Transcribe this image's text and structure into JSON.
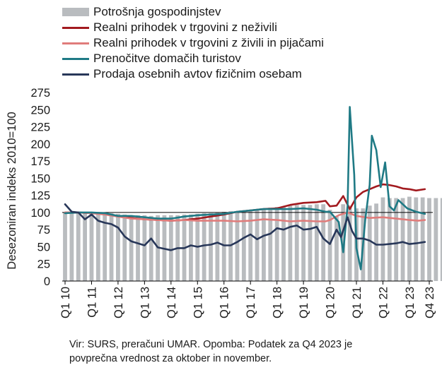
{
  "chart_data": {
    "type": "bar+line",
    "ylabel": "Desezoniran indeks 2010=100",
    "ylim": [
      0,
      275
    ],
    "yticks": [
      0,
      25,
      50,
      75,
      100,
      125,
      150,
      175,
      200,
      225,
      250,
      275
    ],
    "x_tick_labels": [
      "Q1 10",
      "Q1 11",
      "Q1 12",
      "Q1 13",
      "Q1 14",
      "Q1 15",
      "Q1 16",
      "Q1 17",
      "Q1 18",
      "Q1 19",
      "Q1 20",
      "Q1 21",
      "Q1 22",
      "Q1 23",
      "Q4 23"
    ],
    "x_tick_index": [
      0,
      12,
      24,
      36,
      48,
      60,
      72,
      84,
      96,
      108,
      120,
      132,
      144,
      156,
      165
    ],
    "reference_line": 100,
    "bars": {
      "name": "Potrošnja gospodinjstev",
      "color": "#b9bcbf",
      "quarterly_values": [
        100,
        100,
        100,
        101,
        101,
        100,
        99,
        99,
        98,
        97,
        96,
        96,
        96,
        95,
        96,
        96,
        96,
        96,
        97,
        97,
        98,
        99,
        99,
        100,
        101,
        102,
        102,
        103,
        104,
        105,
        106,
        107,
        108,
        109,
        110,
        111,
        111,
        111,
        112,
        112,
        104,
        94,
        112,
        110,
        106,
        106,
        110,
        113,
        122,
        121,
        121,
        121,
        123,
        122,
        122,
        121,
        121,
        121,
        121,
        122,
        122,
        122
      ]
    },
    "series": [
      {
        "name": "Realni prihodek v trgovini z neživili",
        "color": "#a21a1f",
        "values": [
          [
            0,
            100
          ],
          [
            6,
            100
          ],
          [
            12,
            99
          ],
          [
            18,
            98
          ],
          [
            24,
            94
          ],
          [
            30,
            92
          ],
          [
            36,
            90
          ],
          [
            42,
            89
          ],
          [
            48,
            88
          ],
          [
            54,
            89
          ],
          [
            60,
            91
          ],
          [
            66,
            94
          ],
          [
            72,
            97
          ],
          [
            78,
            101
          ],
          [
            84,
            103
          ],
          [
            90,
            105
          ],
          [
            96,
            106
          ],
          [
            102,
            111
          ],
          [
            108,
            114
          ],
          [
            114,
            115
          ],
          [
            118,
            117
          ],
          [
            120,
            109
          ],
          [
            123,
            110
          ],
          [
            126,
            124
          ],
          [
            129,
            105
          ],
          [
            132,
            122
          ],
          [
            135,
            130
          ],
          [
            138,
            134
          ],
          [
            141,
            138
          ],
          [
            144,
            141
          ],
          [
            147,
            140
          ],
          [
            150,
            138
          ],
          [
            153,
            135
          ],
          [
            156,
            134
          ],
          [
            159,
            132
          ],
          [
            163,
            134
          ]
        ]
      },
      {
        "name": "Realni prihodek v trgovini z živili in pijačami",
        "color": "#e07c7b",
        "values": [
          [
            0,
            100
          ],
          [
            6,
            100
          ],
          [
            12,
            99
          ],
          [
            18,
            97
          ],
          [
            24,
            94
          ],
          [
            30,
            91
          ],
          [
            36,
            90
          ],
          [
            42,
            89
          ],
          [
            48,
            88
          ],
          [
            54,
            89
          ],
          [
            60,
            88
          ],
          [
            66,
            88
          ],
          [
            72,
            88
          ],
          [
            78,
            87
          ],
          [
            84,
            88
          ],
          [
            90,
            90
          ],
          [
            96,
            89
          ],
          [
            102,
            87
          ],
          [
            108,
            88
          ],
          [
            114,
            87
          ],
          [
            118,
            87
          ],
          [
            120,
            89
          ],
          [
            124,
            96
          ],
          [
            128,
            100
          ],
          [
            132,
            95
          ],
          [
            138,
            92
          ],
          [
            144,
            93
          ],
          [
            150,
            91
          ],
          [
            156,
            89
          ],
          [
            160,
            88
          ],
          [
            163,
            89
          ]
        ]
      },
      {
        "name": "Prenočitve domačih turistov",
        "color": "#1f7a85",
        "values": [
          [
            0,
            99
          ],
          [
            6,
            100
          ],
          [
            12,
            100
          ],
          [
            18,
            99
          ],
          [
            24,
            95
          ],
          [
            30,
            95
          ],
          [
            36,
            93
          ],
          [
            42,
            91
          ],
          [
            48,
            91
          ],
          [
            54,
            94
          ],
          [
            60,
            96
          ],
          [
            66,
            97
          ],
          [
            72,
            98
          ],
          [
            78,
            101
          ],
          [
            84,
            103
          ],
          [
            90,
            105
          ],
          [
            96,
            105
          ],
          [
            102,
            105
          ],
          [
            108,
            106
          ],
          [
            114,
            104
          ],
          [
            118,
            101
          ],
          [
            120,
            101
          ],
          [
            124,
            86
          ],
          [
            126,
            42
          ],
          [
            128,
            110
          ],
          [
            129,
            254
          ],
          [
            131,
            155
          ],
          [
            132,
            48
          ],
          [
            134,
            17
          ],
          [
            136,
            90
          ],
          [
            138,
            140
          ],
          [
            139,
            212
          ],
          [
            141,
            191
          ],
          [
            143,
            137
          ],
          [
            145,
            173
          ],
          [
            147,
            109
          ],
          [
            149,
            103
          ],
          [
            151,
            118
          ],
          [
            155,
            106
          ],
          [
            159,
            101
          ],
          [
            163,
            98
          ]
        ]
      },
      {
        "name": "Prodaja osebnih avtov fizičnim osebam",
        "color": "#283759",
        "values": [
          [
            0,
            112
          ],
          [
            3,
            101
          ],
          [
            6,
            100
          ],
          [
            9,
            90
          ],
          [
            12,
            97
          ],
          [
            15,
            88
          ],
          [
            18,
            85
          ],
          [
            21,
            83
          ],
          [
            24,
            78
          ],
          [
            27,
            65
          ],
          [
            30,
            58
          ],
          [
            33,
            55
          ],
          [
            36,
            52
          ],
          [
            39,
            62
          ],
          [
            42,
            49
          ],
          [
            45,
            47
          ],
          [
            48,
            45
          ],
          [
            51,
            48
          ],
          [
            54,
            48
          ],
          [
            57,
            52
          ],
          [
            60,
            50
          ],
          [
            63,
            52
          ],
          [
            66,
            53
          ],
          [
            69,
            56
          ],
          [
            72,
            52
          ],
          [
            75,
            52
          ],
          [
            78,
            57
          ],
          [
            81,
            63
          ],
          [
            84,
            68
          ],
          [
            87,
            61
          ],
          [
            90,
            66
          ],
          [
            93,
            69
          ],
          [
            96,
            77
          ],
          [
            99,
            75
          ],
          [
            102,
            79
          ],
          [
            105,
            81
          ],
          [
            108,
            75
          ],
          [
            111,
            76
          ],
          [
            114,
            79
          ],
          [
            117,
            62
          ],
          [
            120,
            54
          ],
          [
            123,
            75
          ],
          [
            125,
            64
          ],
          [
            128,
            93
          ],
          [
            130,
            73
          ],
          [
            132,
            62
          ],
          [
            135,
            62
          ],
          [
            138,
            59
          ],
          [
            141,
            53
          ],
          [
            144,
            53
          ],
          [
            147,
            54
          ],
          [
            150,
            55
          ],
          [
            153,
            57
          ],
          [
            156,
            54
          ],
          [
            159,
            55
          ],
          [
            163,
            57
          ]
        ]
      }
    ]
  },
  "footer": {
    "line1": "Vir: SURS, preračuni UMAR. Opomba: Podatek za Q4 2023 je",
    "line2": "povprečna vrednost za oktober in november."
  }
}
